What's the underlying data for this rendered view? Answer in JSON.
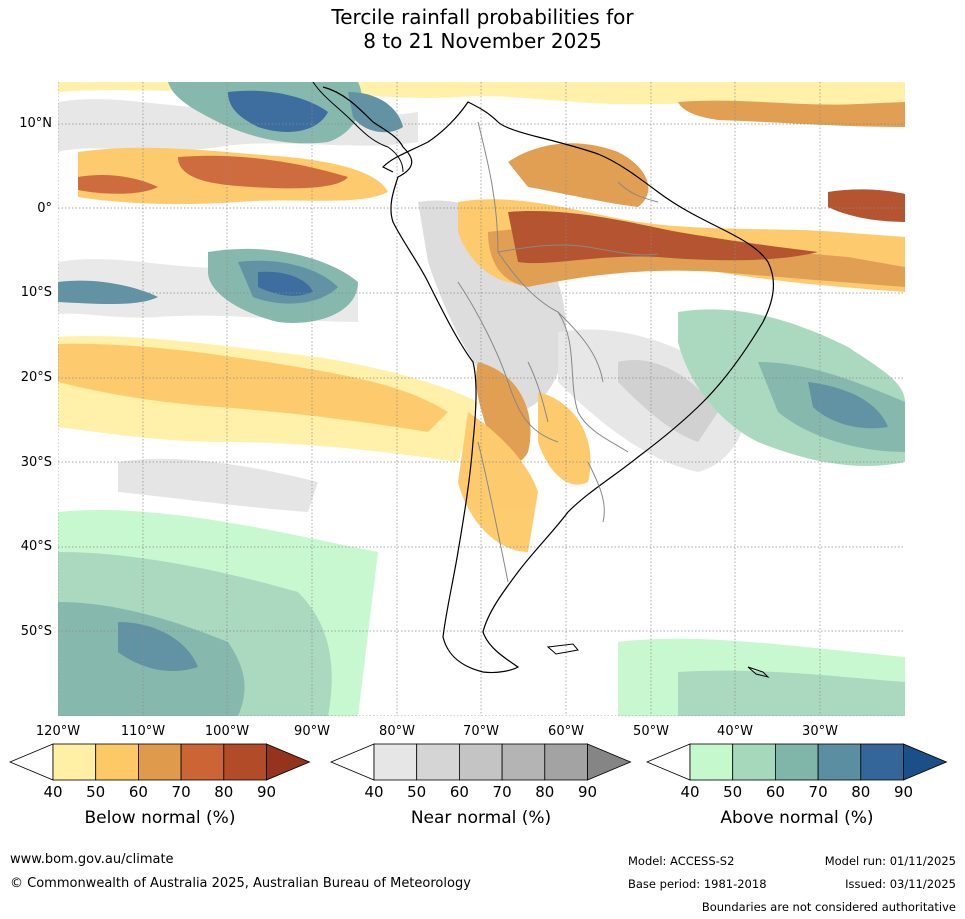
{
  "title_line1": "Tercile rainfall probabilities for",
  "title_line2": "8 to 21 November 2025",
  "lat_labels": [
    "10°N",
    "0°",
    "10°S",
    "20°S",
    "30°S",
    "40°S",
    "50°S"
  ],
  "lon_labels": [
    "120°W",
    "110°W",
    "100°W",
    "90°W",
    "80°W",
    "70°W",
    "60°W",
    "50°W",
    "40°W",
    "30°W"
  ],
  "colorbars": [
    {
      "label": "Below normal (%)",
      "ticks": [
        "40",
        "50",
        "60",
        "70",
        "80",
        "90"
      ],
      "colors": [
        "#fff0a6",
        "#fdc966",
        "#e09a4b",
        "#cc6535",
        "#b24b27",
        "#94341c"
      ]
    },
    {
      "label": "Near normal (%)",
      "ticks": [
        "40",
        "50",
        "60",
        "70",
        "80",
        "90"
      ],
      "colors": [
        "#e6e6e6",
        "#d5d5d5",
        "#c4c4c4",
        "#b4b4b4",
        "#a3a3a3",
        "#858585"
      ]
    },
    {
      "label": "Above normal (%)",
      "ticks": [
        "40",
        "50",
        "60",
        "70",
        "80",
        "90"
      ],
      "colors": [
        "#c6f8ce",
        "#a6d8bc",
        "#80b5aa",
        "#5a8ea0",
        "#34669a",
        "#1a4f88"
      ]
    }
  ],
  "footer": {
    "website": "www.bom.gov.au/climate",
    "copyright": "© Commonwealth of Australia 2025, Australian Bureau of Meteorology",
    "model": "Model: ACCESS-S2",
    "base_period": "Base period: 1981-2018",
    "model_run": "Model run: 01/11/2025",
    "issued": "Issued: 03/11/2025",
    "disclaimer": "Boundaries are not considered authoritative"
  }
}
